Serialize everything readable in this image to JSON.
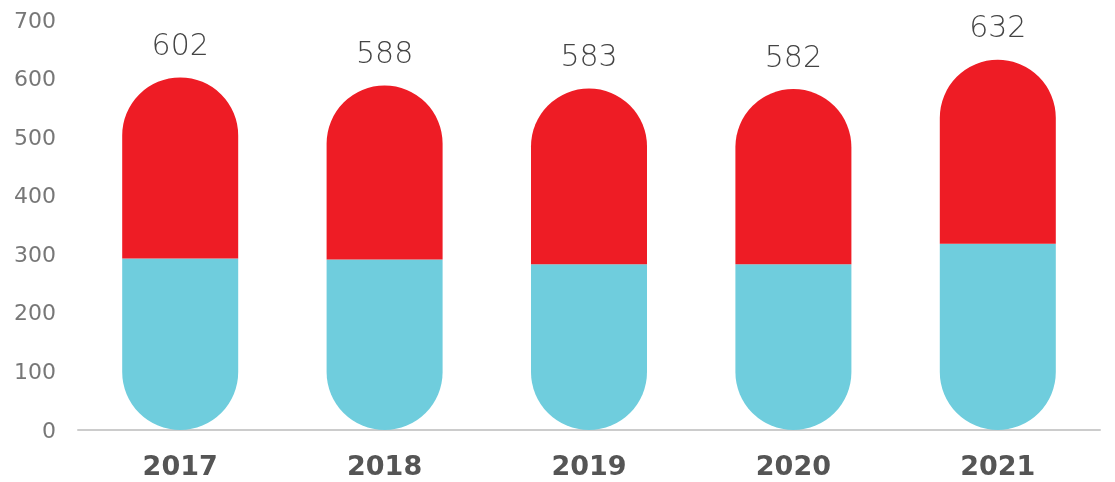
{
  "chart_data": {
    "type": "bar",
    "stacked": true,
    "categories": [
      "2017",
      "2018",
      "2019",
      "2020",
      "2021"
    ],
    "series": [
      {
        "color": "#6fcddd",
        "values": [
          293,
          291,
          283,
          283,
          318
        ]
      },
      {
        "color": "#ee1c25",
        "values": [
          309,
          297,
          300,
          299,
          314
        ]
      }
    ],
    "totals": [
      "602",
      "588",
      "583",
      "582",
      "632"
    ],
    "ylim": [
      0,
      700
    ],
    "yticks": [
      0,
      100,
      200,
      300,
      400,
      500,
      600,
      700
    ],
    "grid": false
  }
}
